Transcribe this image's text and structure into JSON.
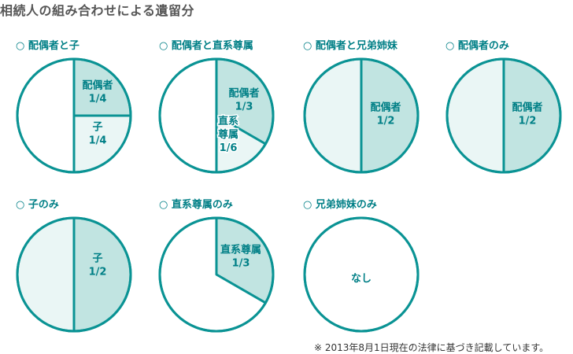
{
  "title": "相続人の組み合わせによる遺留分",
  "footnote": "※ 2013年8月1日現在の法律に基づき記載しています。",
  "colors": {
    "outline": "#0a9394",
    "share_fill": "#c1e4e1",
    "light_fill": "#eaf6f5",
    "white": "#ffffff",
    "text": "#007f86"
  },
  "chart_data": [
    {
      "type": "pie",
      "title": "○ 配偶者と子",
      "slices": [
        {
          "label": "配偶者\n1/4",
          "value": 0.25,
          "fill": "share"
        },
        {
          "label": "子\n1/4",
          "value": 0.25,
          "fill": "light"
        },
        {
          "label": "",
          "value": 0.5,
          "fill": "white"
        }
      ]
    },
    {
      "type": "pie",
      "title": "○ 配偶者と直系尊属",
      "slices": [
        {
          "label": "配偶者\n1/3",
          "value": 0.3333,
          "fill": "share"
        },
        {
          "label": "直系\n尊属\n1/6",
          "value": 0.1667,
          "fill": "light"
        },
        {
          "label": "",
          "value": 0.5,
          "fill": "white"
        }
      ]
    },
    {
      "type": "pie",
      "title": "○ 配偶者と兄弟姉妹",
      "slices": [
        {
          "label": "配偶者\n1/2",
          "value": 0.5,
          "fill": "share"
        },
        {
          "label": "",
          "value": 0.5,
          "fill": "light"
        }
      ]
    },
    {
      "type": "pie",
      "title": "○ 配偶者のみ",
      "slices": [
        {
          "label": "配偶者\n1/2",
          "value": 0.5,
          "fill": "share"
        },
        {
          "label": "",
          "value": 0.5,
          "fill": "light"
        }
      ]
    },
    {
      "type": "pie",
      "title": "○ 子のみ",
      "slices": [
        {
          "label": "子\n1/2",
          "value": 0.5,
          "fill": "share"
        },
        {
          "label": "",
          "value": 0.5,
          "fill": "light"
        }
      ]
    },
    {
      "type": "pie",
      "title": "○ 直系尊属のみ",
      "slices": [
        {
          "label": "直系尊属\n1/3",
          "value": 0.3333,
          "fill": "share"
        },
        {
          "label": "",
          "value": 0.6667,
          "fill": "white"
        }
      ]
    },
    {
      "type": "pie",
      "title": "○ 兄弟姉妹のみ",
      "slices": [
        {
          "label": "なし",
          "value": 1.0,
          "fill": "white"
        }
      ]
    }
  ]
}
